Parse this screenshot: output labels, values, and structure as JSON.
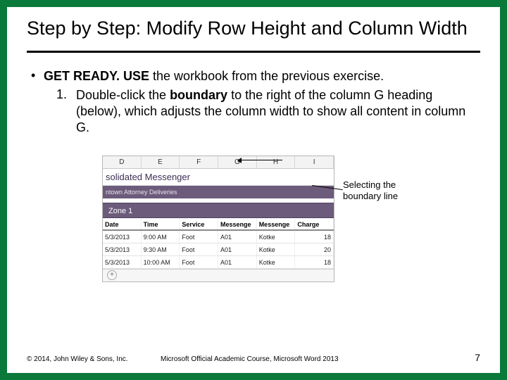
{
  "slide": {
    "title": "Step by Step: Modify Row Height and Column Width",
    "bullet": {
      "lead_bold": "GET READY. USE",
      "lead_rest": " the workbook from the previous exercise."
    },
    "step1": {
      "num": "1.",
      "pre": "Double-click the ",
      "bold": "boundary",
      "post": " to the right of the column G heading (below), which adjusts the column width to show all content in column G."
    }
  },
  "figure": {
    "columns": [
      "D",
      "E",
      "F",
      "G",
      "H",
      "I"
    ],
    "workbook_title": "solidated Messenger",
    "band1_text": "ntown Attorney Deliveries",
    "band2_text": "Zone 1",
    "headers": [
      "Date",
      "Time",
      "Service",
      "Messenge",
      "Messenge",
      "Charge"
    ],
    "rows": [
      [
        "5/3/2013",
        "9:00 AM",
        "Foot",
        "A01",
        "Kotke",
        "18"
      ],
      [
        "5/3/2013",
        "9:30 AM",
        "Foot",
        "A01",
        "Kotke",
        "20"
      ],
      [
        "5/3/2013",
        "10:00 AM",
        "Foot",
        "A01",
        "Kotke",
        "18"
      ]
    ],
    "callout": "Selecting the boundary line",
    "colors": {
      "slide_border": "#0a7a3a",
      "band_bg": "#6c5b7b",
      "band_text": "#ffffff",
      "grid_border": "#c9c9c9"
    }
  },
  "footer": {
    "copyright": "© 2014, John Wiley & Sons, Inc.",
    "course": "Microsoft Official Academic Course, Microsoft Word 2013",
    "page": "7"
  }
}
